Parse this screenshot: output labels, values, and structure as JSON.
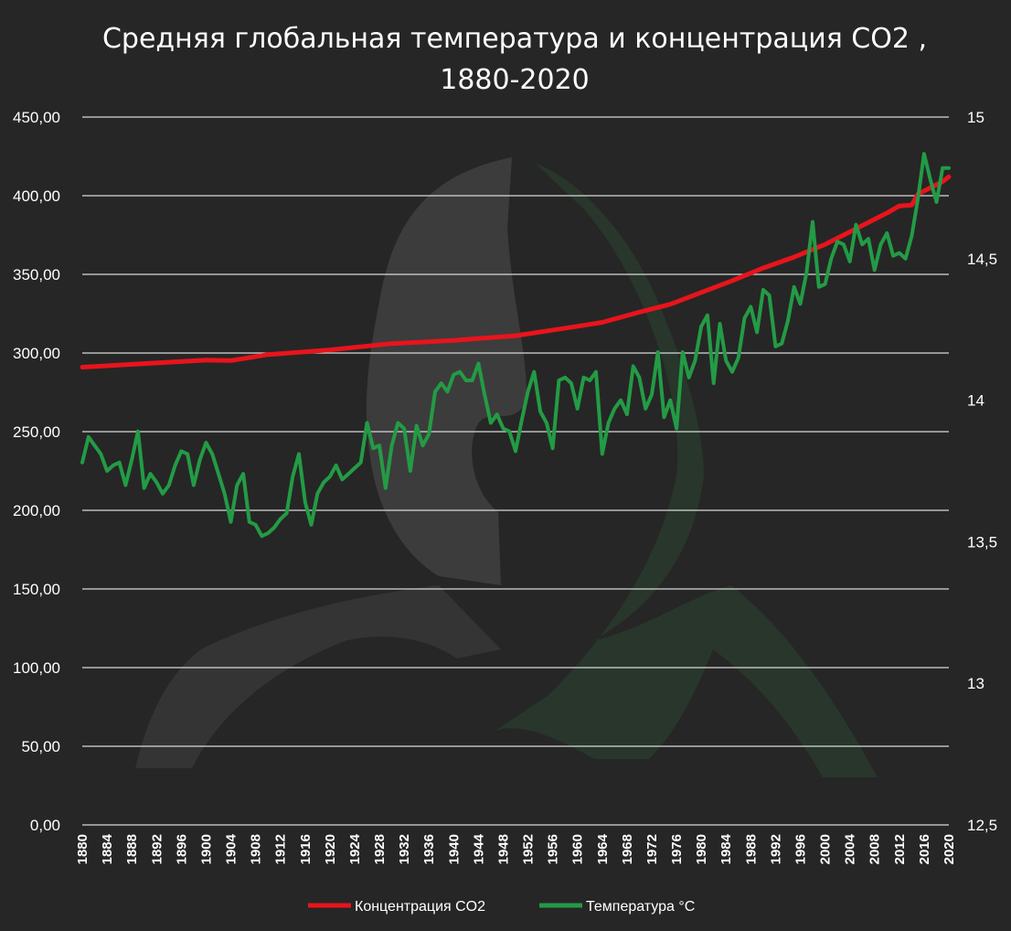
{
  "colors": {
    "background": "#262626",
    "co2": "#e8141c",
    "temperature": "#239b45",
    "grid": "#d9d9d9",
    "text": "#ffffff"
  },
  "chart_data": {
    "type": "line",
    "title": [
      "Средняя глобальная температура и концентрация CO2 ,",
      "1880-2020"
    ],
    "xlabel": "",
    "ylabel_left": "",
    "ylabel_right": "",
    "x_start": 1880,
    "x_end": 2020,
    "x_tick_labels": [
      "1880",
      "1884",
      "1888",
      "1892",
      "1896",
      "1900",
      "1904",
      "1908",
      "1912",
      "1916",
      "1920",
      "1924",
      "1928",
      "1932",
      "1936",
      "1940",
      "1944",
      "1948",
      "1952",
      "1956",
      "1960",
      "1964",
      "1968",
      "1972",
      "1976",
      "1980",
      "1984",
      "1988",
      "1992",
      "1996",
      "2000",
      "2004",
      "2008",
      "2012",
      "2016",
      "2020"
    ],
    "y_left": {
      "min": 0,
      "max": 450,
      "ticks": [
        "0,00",
        "50,00",
        "100,00",
        "150,00",
        "200,00",
        "250,00",
        "300,00",
        "350,00",
        "400,00",
        "450,00"
      ]
    },
    "y_right": {
      "min": 12.5,
      "max": 15,
      "ticks": [
        "12,5",
        "13",
        "13,5",
        "14",
        "14,5",
        "15"
      ]
    },
    "grid": true,
    "legend_position": "bottom",
    "series": [
      {
        "name": "Концентрация CO2",
        "axis": "left",
        "color": "#e8141c",
        "keyframes": [
          [
            1880,
            291
          ],
          [
            1900,
            295.5
          ],
          [
            1904,
            295.2
          ],
          [
            1910,
            299
          ],
          [
            1920,
            302
          ],
          [
            1930,
            306
          ],
          [
            1940,
            308
          ],
          [
            1950,
            311
          ],
          [
            1960,
            317
          ],
          [
            1964,
            319.5
          ],
          [
            1970,
            326
          ],
          [
            1975,
            331
          ],
          [
            1980,
            338.5
          ],
          [
            1985,
            346
          ],
          [
            1990,
            354
          ],
          [
            1995,
            361
          ],
          [
            2000,
            369
          ],
          [
            2005,
            379
          ],
          [
            2010,
            389
          ],
          [
            2012,
            393.5
          ],
          [
            2014,
            394
          ],
          [
            2015,
            401
          ],
          [
            2016,
            403
          ],
          [
            2017,
            405
          ],
          [
            2018,
            407
          ],
          [
            2019,
            409
          ],
          [
            2020,
            412
          ]
        ]
      },
      {
        "name": "Температура °C",
        "axis": "right",
        "color": "#239b45",
        "values": [
          13.78,
          13.87,
          13.84,
          13.81,
          13.75,
          13.77,
          13.78,
          13.7,
          13.79,
          13.89,
          13.69,
          13.74,
          13.71,
          13.67,
          13.7,
          13.77,
          13.82,
          13.81,
          13.7,
          13.79,
          13.85,
          13.81,
          13.74,
          13.67,
          13.57,
          13.7,
          13.74,
          13.57,
          13.56,
          13.52,
          13.53,
          13.55,
          13.58,
          13.6,
          13.73,
          13.81,
          13.64,
          13.56,
          13.67,
          13.71,
          13.73,
          13.77,
          13.72,
          13.74,
          13.76,
          13.78,
          13.92,
          13.83,
          13.84,
          13.69,
          13.84,
          13.92,
          13.9,
          13.75,
          13.91,
          13.84,
          13.88,
          14.03,
          14.06,
          14.03,
          14.09,
          14.1,
          14.07,
          14.07,
          14.13,
          14.02,
          13.92,
          13.95,
          13.9,
          13.89,
          13.82,
          13.93,
          14.03,
          14.1,
          13.96,
          13.92,
          13.83,
          14.07,
          14.08,
          14.06,
          13.97,
          14.08,
          14.07,
          14.1,
          13.81,
          13.92,
          13.97,
          14.0,
          13.95,
          14.12,
          14.08,
          13.97,
          14.02,
          14.17,
          13.94,
          14.0,
          13.9,
          14.17,
          14.08,
          14.14,
          14.26,
          14.3,
          14.06,
          14.27,
          14.14,
          14.1,
          14.15,
          14.29,
          14.33,
          14.24,
          14.39,
          14.37,
          14.19,
          14.2,
          14.28,
          14.4,
          14.34,
          14.45,
          14.63,
          14.4,
          14.41,
          14.5,
          14.56,
          14.55,
          14.49,
          14.62,
          14.55,
          14.57,
          14.46,
          14.55,
          14.59,
          14.51,
          14.52,
          14.5,
          14.58,
          14.71,
          14.87,
          14.78,
          14.7,
          14.82,
          14.82
        ]
      }
    ]
  }
}
